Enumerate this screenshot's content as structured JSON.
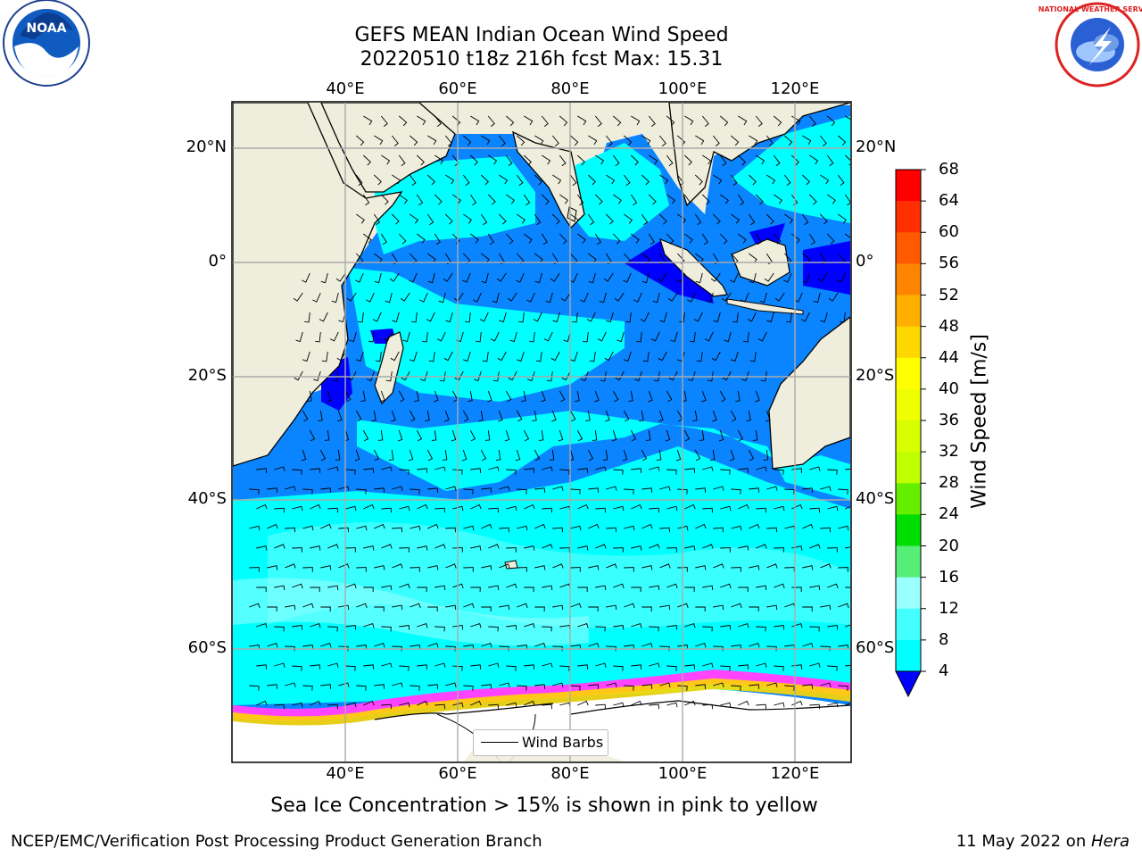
{
  "title": {
    "line1": "GEFS MEAN Indian Ocean Wind Speed",
    "line2": "20220510 t18z 216h fcst   Max: 15.31"
  },
  "logos": {
    "left": "noaa-logo",
    "right": "national-weather-service-logo",
    "noaa_text": "NOAA",
    "nws_text": "NATIONAL WEATHER SERVICE"
  },
  "axes": {
    "lon_top": [
      "40°E",
      "60°E",
      "80°E",
      "100°E",
      "120°E"
    ],
    "lon_bottom": [
      "40°E",
      "60°E",
      "80°E",
      "100°E",
      "120°E"
    ],
    "lat_left": [
      "20°N",
      "0°",
      "20°S",
      "40°S",
      "60°S"
    ],
    "lat_right": [
      "20°N",
      "0°",
      "20°S",
      "40°S",
      "60°S"
    ]
  },
  "legend": {
    "label": "Wind Barbs"
  },
  "colorbar": {
    "label": "Wind Speed [m/s]",
    "ticks": [
      "68",
      "64",
      "60",
      "56",
      "52",
      "48",
      "44",
      "40",
      "36",
      "32",
      "28",
      "24",
      "20",
      "16",
      "12",
      "8",
      "4"
    ],
    "colors": [
      "#ff0000",
      "#ff2f00",
      "#ff5a00",
      "#ff8500",
      "#ffaf00",
      "#ffd700",
      "#ffff00",
      "#f0ff00",
      "#d8ff00",
      "#bfff00",
      "#66ee00",
      "#00dd00",
      "#55ee77",
      "#99ffff",
      "#44ffff",
      "#00ffff",
      "#0088ff",
      "#0000ff"
    ]
  },
  "footer": {
    "note": "Sea Ice Concentration > 15% is shown in pink to yellow",
    "credit": "NCEP/EMC/Verification Post Processing Product Generation Branch",
    "date": "11 May 2022 on ",
    "machine": "Hera"
  }
}
